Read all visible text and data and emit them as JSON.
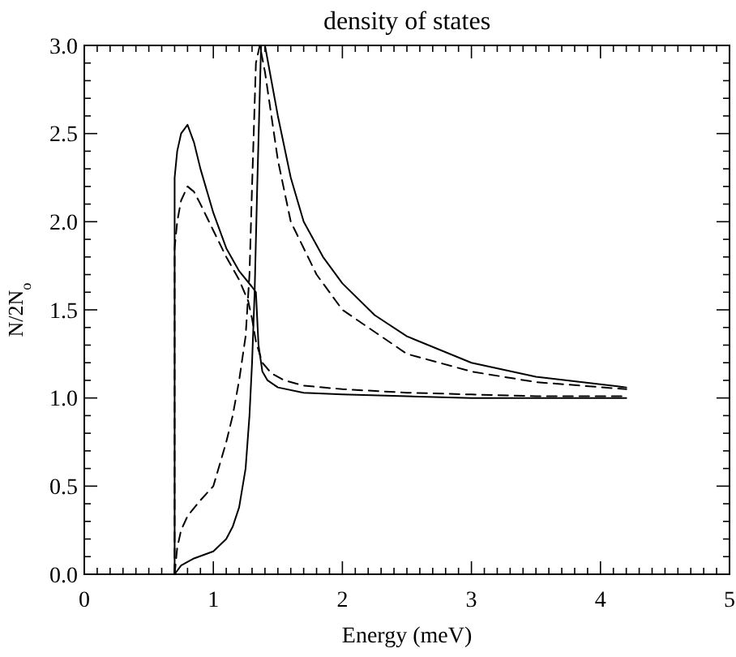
{
  "chart_data": {
    "type": "line",
    "title": "density of states",
    "xlabel": "Energy (meV)",
    "ylabel": "N/2N$_{o}$",
    "xlim": [
      0,
      5
    ],
    "ylim": [
      0,
      3
    ],
    "xticks": [
      0,
      1,
      2,
      3,
      4,
      5
    ],
    "yticks": [
      {
        "value": 0,
        "label": "0.0"
      },
      {
        "value": 0.5,
        "label": "0.5"
      },
      {
        "value": 1,
        "label": "1.0"
      },
      {
        "value": 1.5,
        "label": "1.5"
      },
      {
        "value": 2,
        "label": "2.0"
      },
      {
        "value": 2.5,
        "label": "2.5"
      },
      {
        "value": 3,
        "label": "3.0"
      }
    ],
    "grid": false,
    "marker": "none",
    "series": [
      {
        "color": "#000000",
        "line_style": "solid",
        "x": [
          0.7,
          0.7,
          0.72,
          0.75,
          0.8,
          0.85,
          0.9,
          1.0,
          1.1,
          1.2,
          1.3,
          1.33,
          1.35,
          1.38,
          1.42,
          1.5,
          1.7,
          2.0,
          2.5,
          3.0,
          3.5,
          4.2
        ],
        "values": [
          0,
          2.25,
          2.4,
          2.5,
          2.55,
          2.45,
          2.3,
          2.05,
          1.85,
          1.72,
          1.63,
          1.6,
          1.3,
          1.15,
          1.1,
          1.06,
          1.03,
          1.02,
          1.01,
          1.0,
          1.0,
          1.0
        ]
      },
      {
        "color": "#000000",
        "line_style": "dashed",
        "x": [
          0.7,
          0.7,
          0.72,
          0.75,
          0.8,
          0.85,
          0.9,
          1.0,
          1.1,
          1.2,
          1.27,
          1.3,
          1.33,
          1.38,
          1.45,
          1.55,
          1.7,
          2.0,
          2.5,
          3.0,
          3.5,
          4.2
        ],
        "values": [
          0,
          1.85,
          2.0,
          2.12,
          2.2,
          2.17,
          2.1,
          1.95,
          1.8,
          1.67,
          1.55,
          1.45,
          1.32,
          1.2,
          1.14,
          1.1,
          1.07,
          1.05,
          1.03,
          1.02,
          1.01,
          1.01
        ]
      },
      {
        "color": "#000000",
        "line_style": "solid",
        "x": [
          0.7,
          0.75,
          0.85,
          1.0,
          1.1,
          1.15,
          1.2,
          1.25,
          1.28,
          1.3,
          1.32,
          1.34,
          1.37,
          1.4,
          1.45,
          1.5,
          1.6,
          1.7,
          1.85,
          2.0,
          2.25,
          2.5,
          3.0,
          3.5,
          4.2
        ],
        "values": [
          0,
          0.05,
          0.09,
          0.13,
          0.2,
          0.27,
          0.38,
          0.6,
          0.9,
          1.2,
          1.6,
          2.2,
          3.0,
          3.0,
          2.8,
          2.6,
          2.25,
          2.0,
          1.8,
          1.65,
          1.47,
          1.35,
          1.2,
          1.12,
          1.06
        ]
      },
      {
        "color": "#000000",
        "line_style": "dashed",
        "x": [
          0.7,
          0.72,
          0.75,
          0.8,
          0.9,
          1.0,
          1.1,
          1.15,
          1.2,
          1.25,
          1.28,
          1.3,
          1.33,
          1.36,
          1.4,
          1.45,
          1.5,
          1.6,
          1.8,
          2.0,
          2.5,
          3.0,
          3.5,
          4.2
        ],
        "values": [
          0,
          0.15,
          0.25,
          0.33,
          0.42,
          0.5,
          0.75,
          0.9,
          1.1,
          1.35,
          1.7,
          2.2,
          2.9,
          3.0,
          2.85,
          2.6,
          2.35,
          2.0,
          1.7,
          1.5,
          1.25,
          1.15,
          1.09,
          1.05
        ]
      }
    ]
  }
}
